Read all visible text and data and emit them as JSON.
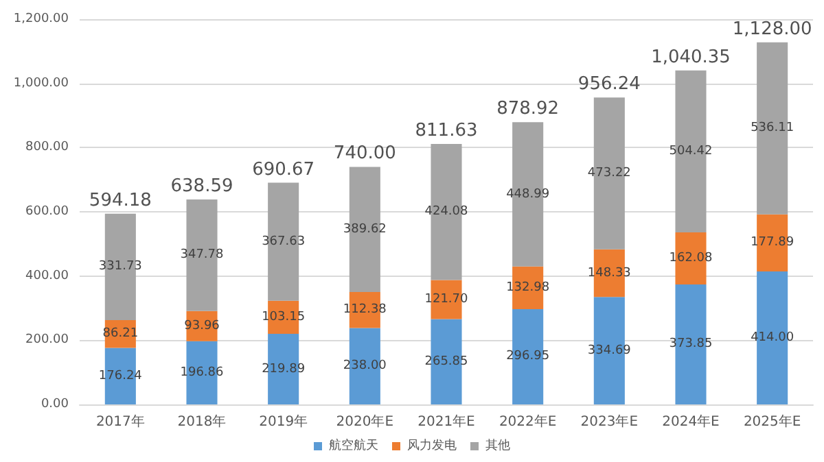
{
  "chart_data": {
    "type": "bar",
    "stacked": true,
    "categories": [
      "2017年",
      "2018年",
      "2019年",
      "2020年E",
      "2021年E",
      "2022年E",
      "2023年E",
      "2024年E",
      "2025年E"
    ],
    "series": [
      {
        "name": "航空航天",
        "color": "#5b9bd5",
        "values": [
          176.24,
          196.86,
          219.89,
          238.0,
          265.85,
          296.95,
          334.69,
          373.85,
          414.0
        ],
        "value_labels": [
          "176.24",
          "196.86",
          "219.89",
          "238.00",
          "265.85",
          "296.95",
          "334.69",
          "373.85",
          "414.00"
        ]
      },
      {
        "name": "风力发电",
        "color": "#ed7d31",
        "values": [
          86.21,
          93.96,
          103.15,
          112.38,
          121.7,
          132.98,
          148.33,
          162.08,
          177.89
        ],
        "value_labels": [
          "86.21",
          "93.96",
          "103.15",
          "112.38",
          "121.70",
          "132.98",
          "148.33",
          "162.08",
          "177.89"
        ]
      },
      {
        "name": "其他",
        "color": "#a5a5a5",
        "values": [
          331.73,
          347.78,
          367.63,
          389.62,
          424.08,
          448.99,
          473.22,
          504.42,
          536.11
        ],
        "value_labels": [
          "331.73",
          "347.78",
          "367.63",
          "389.62",
          "424.08",
          "448.99",
          "473.22",
          "504.42",
          "536.11"
        ]
      }
    ],
    "totals": [
      "594.18",
      "638.59",
      "690.67",
      "740.00",
      "811.63",
      "878.92",
      "956.24",
      "1,040.35",
      "1,128.00"
    ],
    "ylim": [
      0,
      1200
    ],
    "yticks": [
      {
        "value": 0,
        "label": "0.00"
      },
      {
        "value": 200,
        "label": "200.00"
      },
      {
        "value": 400,
        "label": "400.00"
      },
      {
        "value": 600,
        "label": "600.00"
      },
      {
        "value": 800,
        "label": "800.00"
      },
      {
        "value": 1000,
        "label": "1,000.00"
      },
      {
        "value": 1200,
        "label": "1,200.00"
      }
    ],
    "grid": "y",
    "legend": "bottom"
  }
}
